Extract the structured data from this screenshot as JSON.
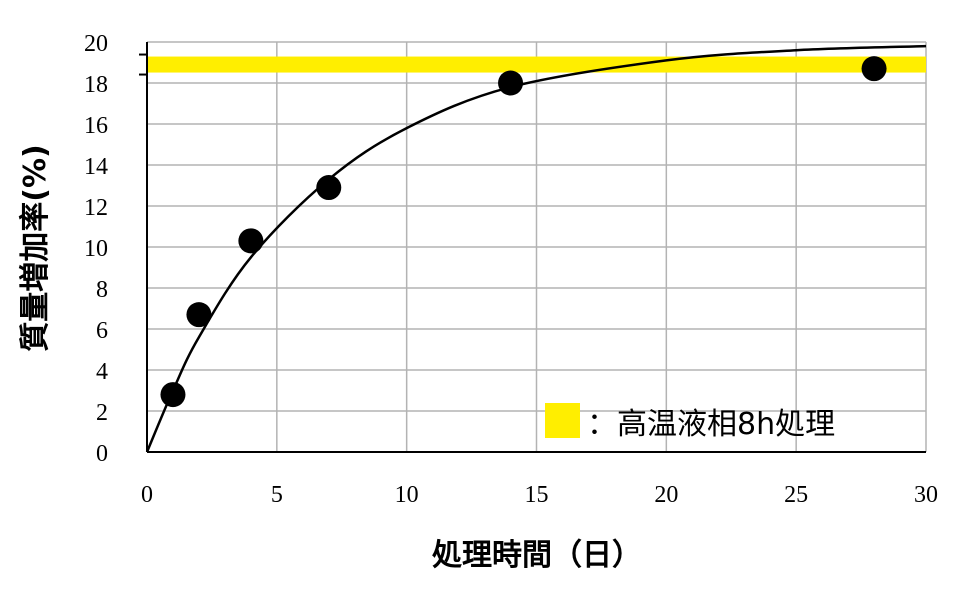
{
  "chart_data": {
    "type": "scatter",
    "xlabel": "処理時間（日）",
    "ylabel": "質量増加率(%)",
    "xlim": [
      0,
      30
    ],
    "ylim": [
      0,
      20
    ],
    "x_ticks": [
      0,
      5,
      10,
      15,
      20,
      25,
      30
    ],
    "y_ticks": [
      0,
      2,
      4,
      6,
      8,
      10,
      12,
      14,
      16,
      18,
      20
    ],
    "grid": true,
    "series": [
      {
        "type": "scatter",
        "color": "#000000",
        "points": [
          {
            "x": 1,
            "y": 2.8
          },
          {
            "x": 2,
            "y": 6.7
          },
          {
            "x": 4,
            "y": 10.3
          },
          {
            "x": 7,
            "y": 12.9
          },
          {
            "x": 14,
            "y": 18.0
          },
          {
            "x": 28,
            "y": 18.7
          }
        ]
      },
      {
        "type": "line",
        "color": "#000000",
        "points": [
          {
            "x": 0,
            "y": 0
          },
          {
            "x": 1,
            "y": 3.0
          },
          {
            "x": 2,
            "y": 5.6
          },
          {
            "x": 4,
            "y": 9.5
          },
          {
            "x": 7,
            "y": 13.3
          },
          {
            "x": 10,
            "y": 15.8
          },
          {
            "x": 14,
            "y": 17.8
          },
          {
            "x": 20,
            "y": 19.1
          },
          {
            "x": 25,
            "y": 19.6
          },
          {
            "x": 30,
            "y": 19.8
          }
        ]
      }
    ],
    "reference_band": {
      "y": 18.9,
      "color": "#ffee00",
      "label": "：高温液相8h処理"
    },
    "legend_position": "bottom-right"
  }
}
